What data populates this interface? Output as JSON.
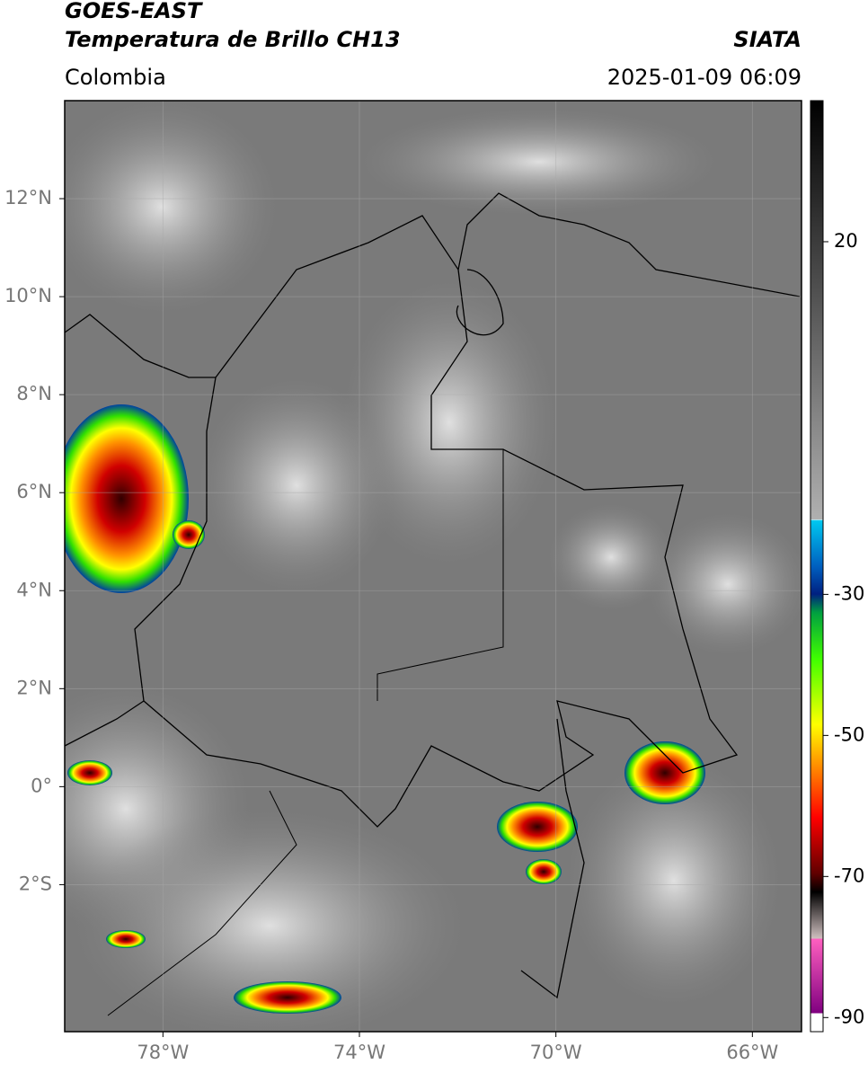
{
  "header": {
    "satellite": "GOES-EAST",
    "product": "Temperatura de Brillo CH13",
    "source": "SIATA",
    "region": "Colombia",
    "datetime": "2025-01-09 06:09"
  },
  "map": {
    "xlim": [
      -80,
      -65
    ],
    "ylim": [
      -5,
      14
    ],
    "lat_ticks": [
      {
        "value": 12,
        "label": "12°N"
      },
      {
        "value": 10,
        "label": "10°N"
      },
      {
        "value": 8,
        "label": "8°N"
      },
      {
        "value": 6,
        "label": "6°N"
      },
      {
        "value": 4,
        "label": "4°N"
      },
      {
        "value": 2,
        "label": "2°N"
      },
      {
        "value": 0,
        "label": "0°"
      },
      {
        "value": -2,
        "label": "2°S"
      }
    ],
    "lon_ticks": [
      {
        "value": -78,
        "label": "78°W"
      },
      {
        "value": -74,
        "label": "74°W"
      },
      {
        "value": -70,
        "label": "70°W"
      },
      {
        "value": -66,
        "label": "66°W"
      }
    ],
    "grid": true
  },
  "colorbar": {
    "clim": [
      -92,
      40
    ],
    "ticks": [
      20,
      -30,
      -50,
      -70,
      -90
    ]
  }
}
